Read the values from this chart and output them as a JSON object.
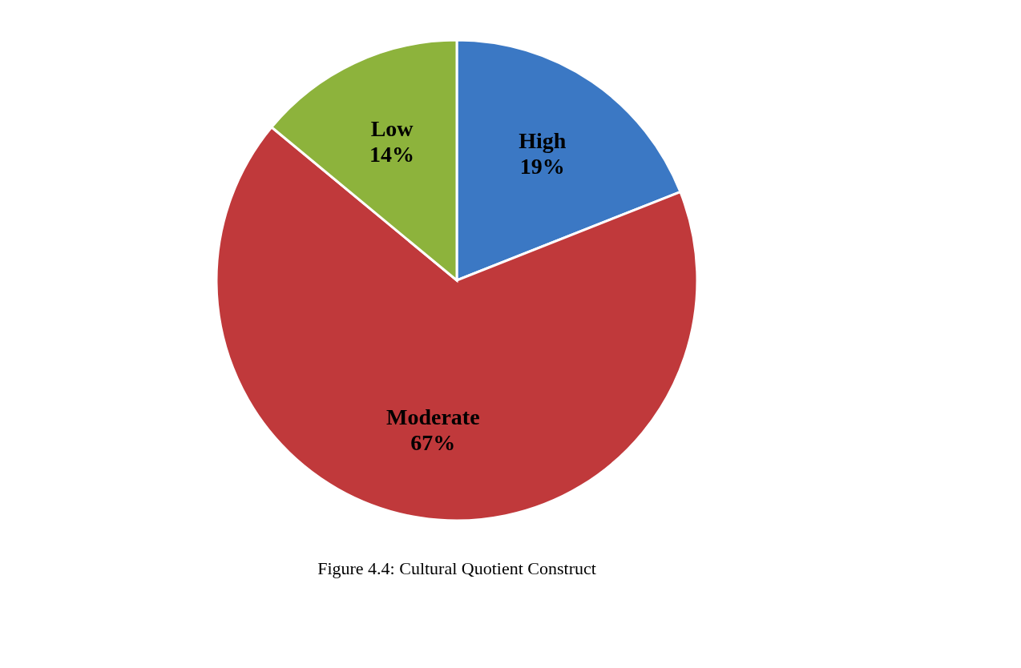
{
  "chart_data": {
    "type": "pie",
    "categories": [
      "High",
      "Moderate",
      "Low"
    ],
    "values": [
      19,
      67,
      14
    ],
    "value_labels": [
      "19%",
      "67%",
      "14%"
    ],
    "colors": [
      "#3b78c4",
      "#c0393b",
      "#8db33c"
    ],
    "annotations": [
      "Figure 4.4: Cultural Quotient Construct"
    ]
  }
}
